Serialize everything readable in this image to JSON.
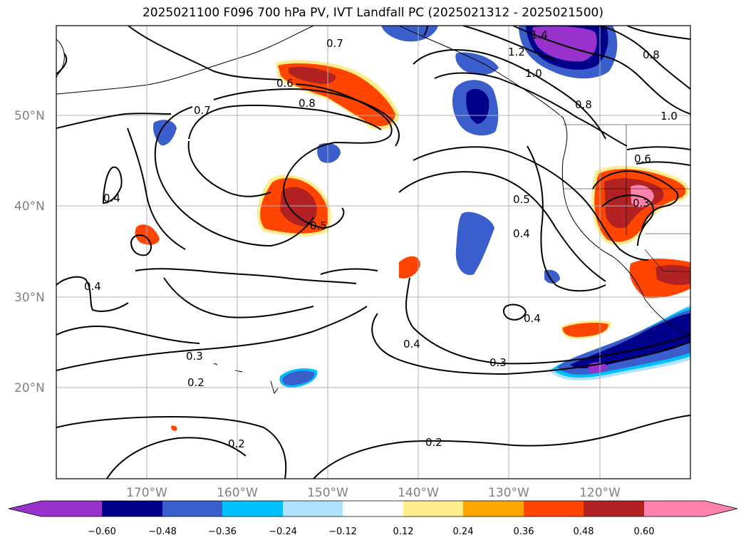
{
  "title": "2025021100 F096 700 hPa PV, IVT Landfall PC (2025021312 - 2025021500)",
  "map": {
    "lon_range": [
      -180,
      -110
    ],
    "lat_range": [
      10,
      60
    ],
    "lat_labels": [
      "50°N",
      "40°N",
      "30°N",
      "20°N"
    ],
    "lon_labels": [
      "170°W",
      "160°W",
      "150°W",
      "140°W",
      "130°W",
      "120°W"
    ],
    "contour_labels": [
      "0.7",
      "0.6",
      "0.8",
      "0.7",
      "1.4",
      "1.2",
      "1.0",
      "0.8",
      "0.8",
      "1.0",
      "0.6",
      "0.3",
      "0.5",
      "0.4",
      "0.4",
      "0.5",
      "0.4",
      "0.4",
      "0.3",
      "0.2",
      "0.4",
      "0.3",
      "0.2",
      "0.2"
    ],
    "grid": true
  },
  "colorbar": {
    "colors": [
      "#9932cc",
      "#00008b",
      "#3a5fcd",
      "#00bfff",
      "#b0e2ff",
      "#ffffff",
      "#ffec8b",
      "#ffa500",
      "#ff4500",
      "#b22222",
      "#ff82ab"
    ],
    "ticks": [
      "−0.60",
      "−0.48",
      "−0.36",
      "−0.24",
      "−0.12",
      "0.12",
      "0.24",
      "0.36",
      "0.48",
      "0.60"
    ],
    "extend": "both"
  }
}
